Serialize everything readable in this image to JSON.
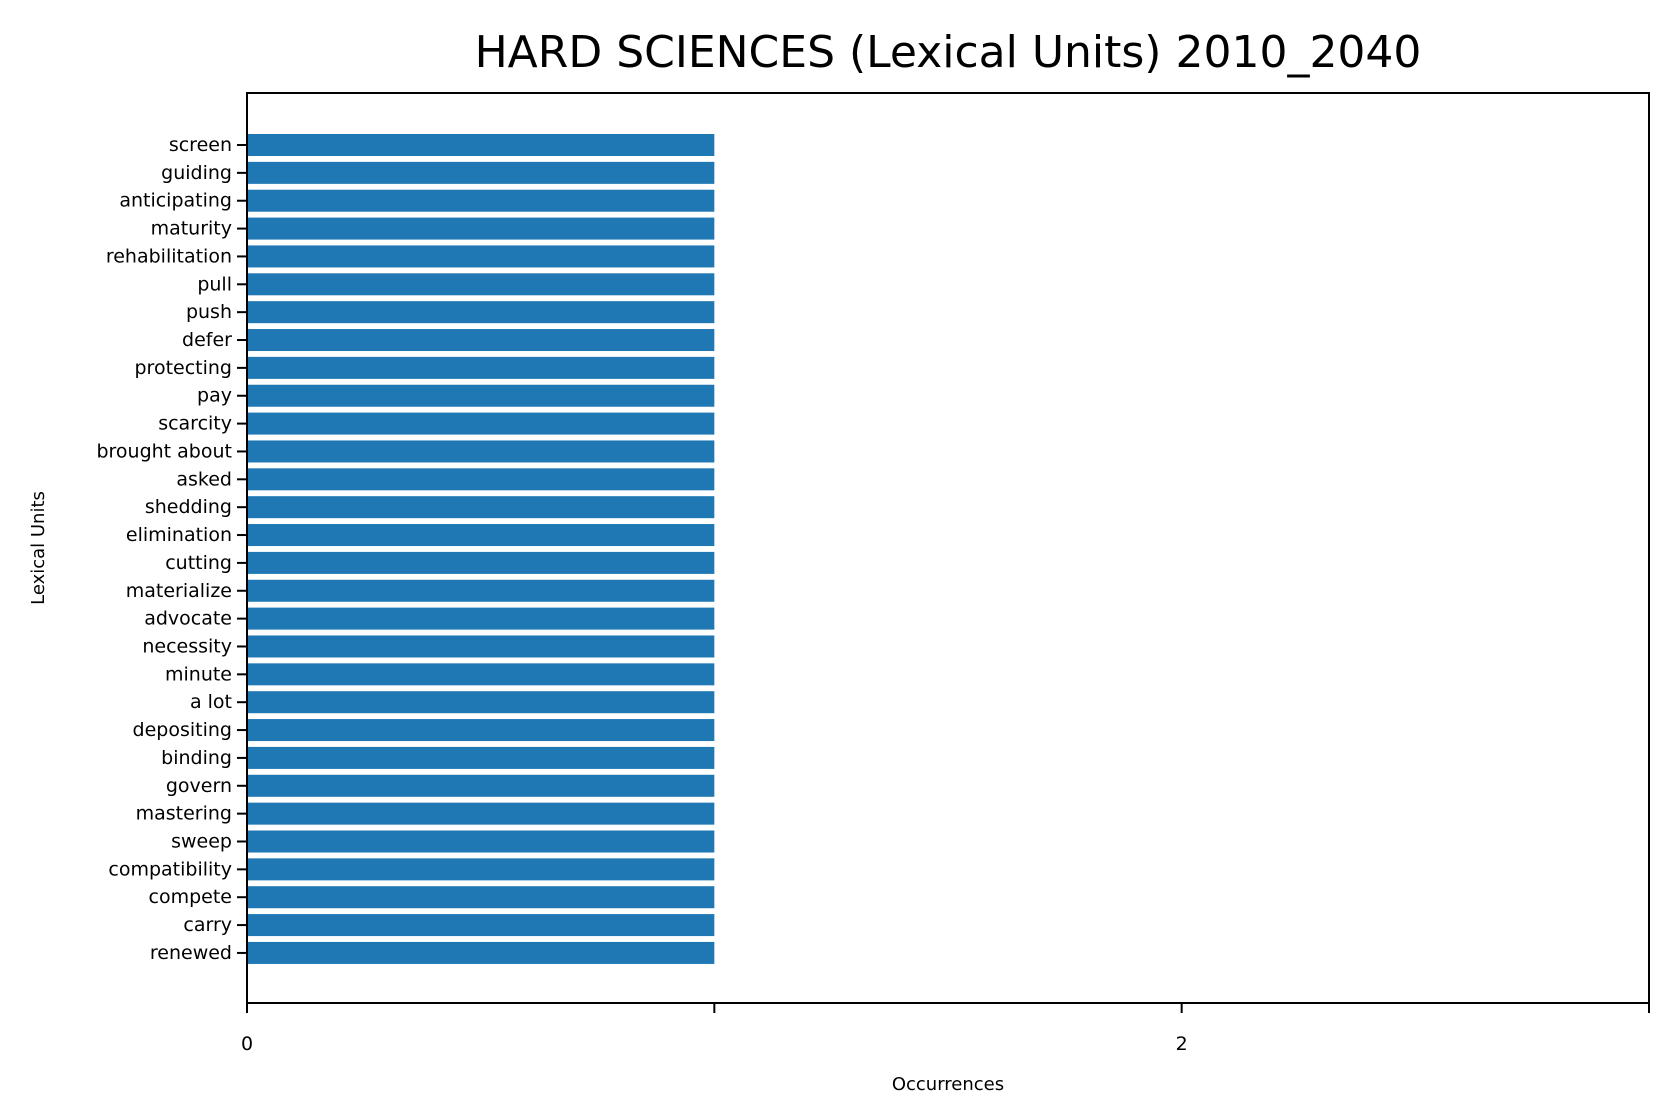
{
  "chart_data": {
    "type": "bar",
    "orientation": "horizontal",
    "title": "HARD SCIENCES (Lexical Units) 2010_2040",
    "xlabel": "Occurrences",
    "ylabel": "Lexical Units",
    "xlim": [
      0,
      3
    ],
    "x_ticks": [
      0,
      1,
      2,
      3
    ],
    "x_tick_labels": [
      "0",
      "",
      "2",
      ""
    ],
    "grid": false,
    "bar_color": "#1f77b4",
    "categories": [
      "screen",
      "guiding",
      "anticipating",
      "maturity",
      "rehabilitation",
      "pull",
      "push",
      "defer",
      "protecting",
      "pay",
      "scarcity",
      "brought about",
      "asked",
      "shedding",
      "elimination",
      "cutting",
      "materialize",
      "advocate",
      "necessity",
      "minute",
      "a lot",
      "depositing",
      "binding",
      "govern",
      "mastering",
      "sweep",
      "compatibility",
      "compete",
      "carry",
      "renewed"
    ],
    "values": [
      1,
      1,
      1,
      1,
      1,
      1,
      1,
      1,
      1,
      1,
      1,
      1,
      1,
      1,
      1,
      1,
      1,
      1,
      1,
      1,
      1,
      1,
      1,
      1,
      1,
      1,
      1,
      1,
      1,
      1
    ]
  }
}
